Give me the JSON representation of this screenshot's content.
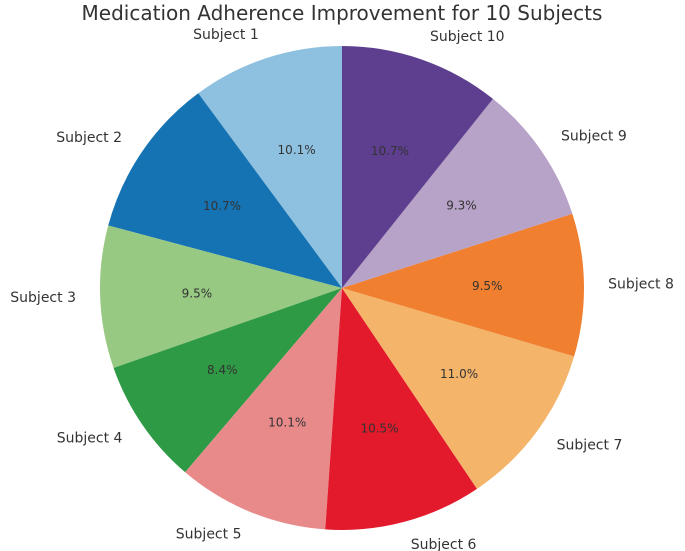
{
  "chart_data": {
    "type": "pie",
    "title": "Medication Adherence Improvement for 10 Subjects",
    "start_angle_deg": 90,
    "direction": "counterclockwise",
    "slices": [
      {
        "label": "Subject 1",
        "percent": 10.1,
        "display": "10.1%",
        "color": "#8ec1df"
      },
      {
        "label": "Subject 2",
        "percent": 10.7,
        "display": "10.7%",
        "color": "#1673b3"
      },
      {
        "label": "Subject 3",
        "percent": 9.5,
        "display": "9.5%",
        "color": "#98c983"
      },
      {
        "label": "Subject 4",
        "percent": 8.4,
        "display": "8.4%",
        "color": "#2f9a45"
      },
      {
        "label": "Subject 5",
        "percent": 10.1,
        "display": "10.1%",
        "color": "#e88a8a"
      },
      {
        "label": "Subject 6",
        "percent": 10.5,
        "display": "10.5%",
        "color": "#e31a2c"
      },
      {
        "label": "Subject 7",
        "percent": 11.0,
        "display": "11.0%",
        "color": "#f4b46a"
      },
      {
        "label": "Subject 8",
        "percent": 9.5,
        "display": "9.5%",
        "color": "#f07f2f"
      },
      {
        "label": "Subject 9",
        "percent": 9.3,
        "display": "9.3%",
        "color": "#b7a2c8"
      },
      {
        "label": "Subject 10",
        "percent": 10.7,
        "display": "10.7%",
        "color": "#5e3f8f"
      }
    ]
  }
}
